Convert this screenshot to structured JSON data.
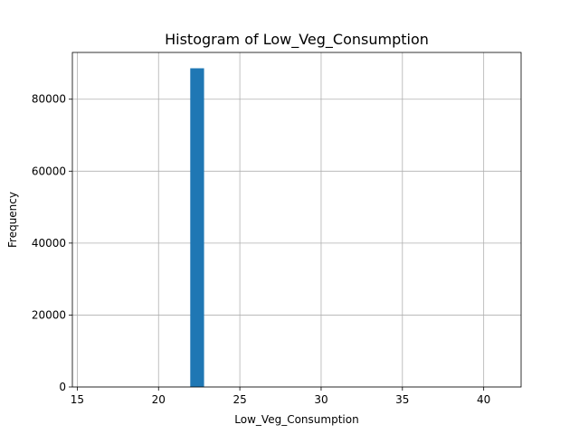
{
  "chart_data": {
    "type": "bar",
    "title": "Histogram of Low_Veg_Consumption",
    "xlabel": "Low_Veg_Consumption",
    "ylabel": "Frequency",
    "xlim": [
      14.7,
      42.3
    ],
    "ylim": [
      0,
      93000
    ],
    "x_ticks": [
      15,
      20,
      25,
      30,
      35,
      40
    ],
    "y_ticks": [
      0,
      20000,
      40000,
      60000,
      80000
    ],
    "grid": true,
    "bars": [
      {
        "x_start": 21.95,
        "x_end": 22.8,
        "value": 88600
      }
    ],
    "bar_color": "#1f77b4",
    "grid_color": "#b0b0b0"
  }
}
